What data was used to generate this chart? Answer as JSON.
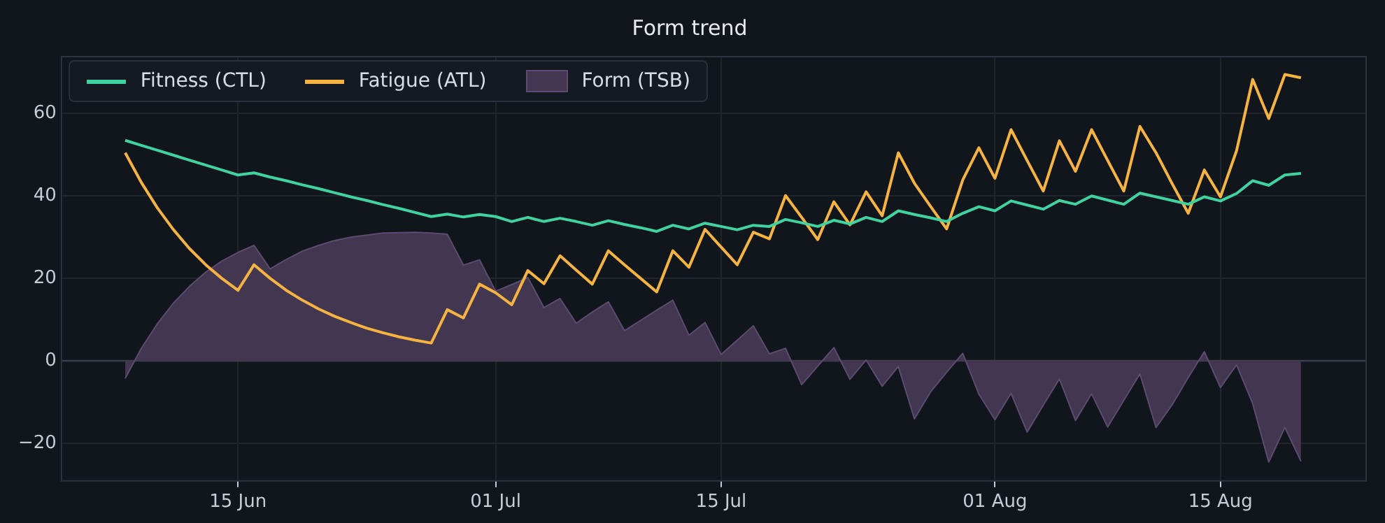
{
  "chart_data": {
    "type": "line",
    "title": "Form trend",
    "x": [
      "--06-08",
      "--06-09",
      "--06-10",
      "--06-11",
      "--06-12",
      "--06-13",
      "--06-14",
      "--06-15",
      "--06-16",
      "--06-17",
      "--06-18",
      "--06-19",
      "--06-20",
      "--06-21",
      "--06-22",
      "--06-23",
      "--06-24",
      "--06-25",
      "--06-26",
      "--06-27",
      "--06-28",
      "--06-29",
      "--06-30",
      "--07-01",
      "--07-02",
      "--07-03",
      "--07-04",
      "--07-05",
      "--07-06",
      "--07-07",
      "--07-08",
      "--07-09",
      "--07-10",
      "--07-11",
      "--07-12",
      "--07-13",
      "--07-14",
      "--07-15",
      "--07-16",
      "--07-17",
      "--07-18",
      "--07-19",
      "--07-20",
      "--07-21",
      "--07-22",
      "--07-23",
      "--07-24",
      "--07-25",
      "--07-26",
      "--07-27",
      "--07-28",
      "--07-29",
      "--07-30",
      "--07-31",
      "--08-01",
      "--08-02",
      "--08-03",
      "--08-04",
      "--08-05",
      "--08-06",
      "--08-07",
      "--08-08",
      "--08-09",
      "--08-10",
      "--08-11",
      "--08-12",
      "--08-13",
      "--08-14",
      "--08-15",
      "--08-16",
      "--08-17",
      "--08-18",
      "--08-19",
      "--08-20"
    ],
    "series": [
      {
        "name": "Fitness (CTL)",
        "color": "#40d3a0",
        "values": [
          53.5,
          52.3,
          51.1,
          49.9,
          48.7,
          47.5,
          46.3,
          45.1,
          45.6,
          44.6,
          43.7,
          42.7,
          41.8,
          40.8,
          39.8,
          38.9,
          37.9,
          37.0,
          36.0,
          35.0,
          35.6,
          34.9,
          35.5,
          35.0,
          33.8,
          34.8,
          33.8,
          34.6,
          33.8,
          32.9,
          34.0,
          33.1,
          32.3,
          31.4,
          32.9,
          32.0,
          33.4,
          32.6,
          31.8,
          32.9,
          32.6,
          34.3,
          33.5,
          32.6,
          34.1,
          33.2,
          34.8,
          33.8,
          36.4,
          35.5,
          34.7,
          33.8,
          35.8,
          37.4,
          36.4,
          38.8,
          37.8,
          36.8,
          38.9,
          38.0,
          40.0,
          39.0,
          38.0,
          40.7,
          39.8,
          38.9,
          38.0,
          39.8,
          38.8,
          40.6,
          43.7,
          42.6,
          45.1,
          45.5
        ]
      },
      {
        "name": "Fatigue (ATL)",
        "color": "#f5b342",
        "values": [
          50.5,
          43.3,
          37.1,
          31.8,
          27.2,
          23.3,
          20.0,
          17.1,
          23.3,
          20.0,
          17.1,
          14.7,
          12.6,
          10.8,
          9.3,
          7.9,
          6.8,
          5.8,
          5.0,
          4.3,
          12.4,
          10.4,
          18.6,
          16.5,
          13.6,
          21.9,
          18.7,
          25.5,
          22.0,
          18.6,
          26.7,
          23.3,
          20.0,
          16.7,
          26.7,
          22.7,
          31.9,
          27.6,
          23.3,
          31.2,
          29.6,
          40.1,
          34.8,
          29.4,
          38.6,
          33.0,
          41.0,
          35.2,
          50.5,
          43.1,
          37.5,
          32.0,
          43.9,
          51.7,
          44.3,
          56.1,
          48.6,
          41.2,
          53.4,
          46.0,
          56.1,
          48.6,
          41.2,
          56.9,
          50.5,
          43.0,
          35.8,
          46.3,
          39.8,
          51.0,
          68.3,
          58.8,
          69.5,
          68.7
        ]
      },
      {
        "name": "Form (TSB)",
        "type": "area",
        "color": "#433650",
        "values": [
          -4.3,
          3.0,
          9.0,
          14.0,
          18.1,
          21.5,
          24.2,
          26.3,
          28.0,
          22.3,
          24.6,
          26.6,
          28.0,
          29.2,
          30.0,
          30.5,
          31.0,
          31.1,
          31.2,
          31.0,
          30.7,
          23.2,
          24.5,
          16.9,
          18.5,
          20.2,
          12.9,
          15.1,
          9.1,
          11.8,
          14.3,
          7.3,
          9.8,
          12.3,
          14.7,
          6.2,
          9.3,
          1.5,
          5.0,
          8.5,
          1.7,
          3.0,
          -5.8,
          -1.3,
          3.2,
          -4.5,
          0.2,
          -6.2,
          -1.4,
          -14.1,
          -7.6,
          -2.8,
          1.8,
          -8.1,
          -14.3,
          -7.9,
          -17.3,
          -10.8,
          -4.4,
          -14.5,
          -8.0,
          -16.1,
          -9.6,
          -3.2,
          -16.2,
          -10.7,
          -4.1,
          2.2,
          -6.5,
          -1.0,
          -10.4,
          -24.6,
          -16.2,
          -24.4
        ]
      }
    ],
    "xlim": [
      "--06-04",
      "--08-24"
    ],
    "xticks": [
      {
        "value": "--06-15",
        "label": "15 Jun"
      },
      {
        "value": "--07-01",
        "label": "01 Jul"
      },
      {
        "value": "--07-15",
        "label": "15 Jul"
      },
      {
        "value": "--08-01",
        "label": "01 Aug"
      },
      {
        "value": "--08-15",
        "label": "15 Aug"
      }
    ],
    "ylim": [
      -29,
      74
    ],
    "yticks": [
      {
        "value": -20,
        "label": "−20"
      },
      0,
      20,
      40,
      60
    ],
    "ref_lines": [
      {
        "axis": "y",
        "value": 0,
        "color": "#3b404c"
      }
    ],
    "grid": true,
    "legend": "top left",
    "marker": "none",
    "line_style": "solid"
  }
}
